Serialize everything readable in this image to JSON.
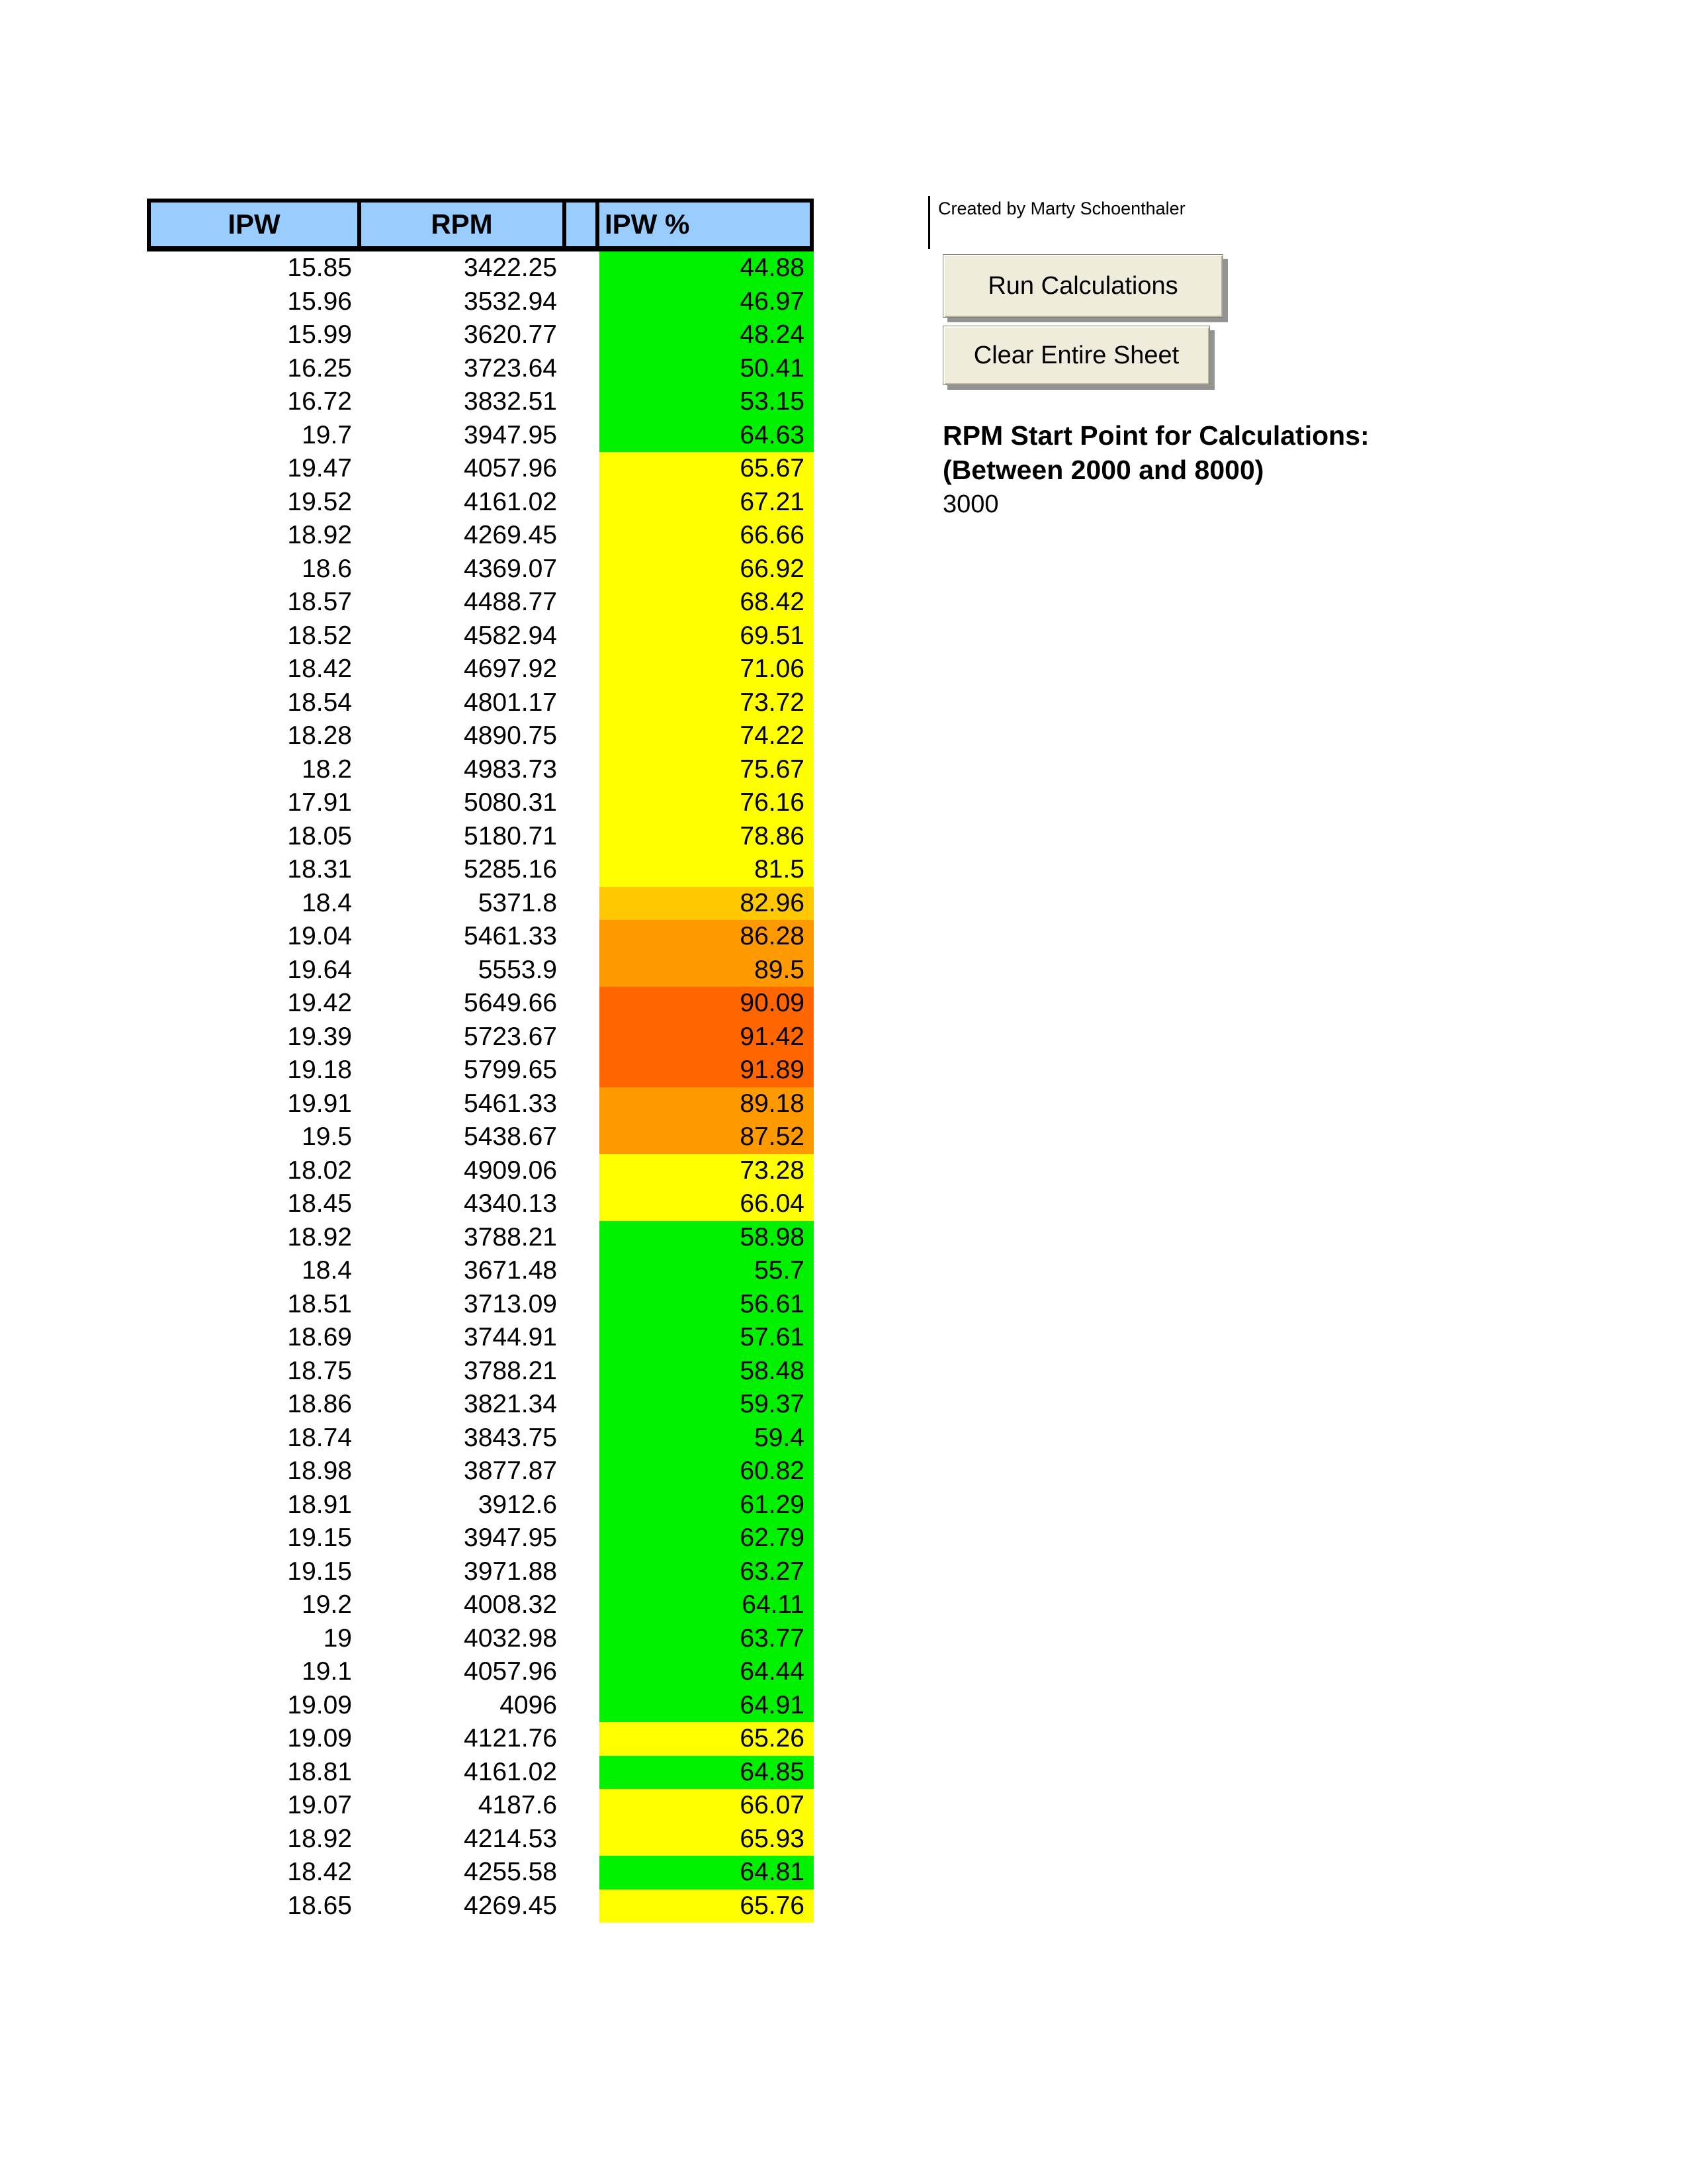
{
  "table": {
    "headers": {
      "ipw": "IPW",
      "rpm": "RPM",
      "ipw_pct": "IPW %"
    },
    "header_bg": "#99CCFF",
    "rows": [
      {
        "ipw": "15.85",
        "rpm": "3422.25",
        "pct": "44.88",
        "color": "green"
      },
      {
        "ipw": "15.96",
        "rpm": "3532.94",
        "pct": "46.97",
        "color": "green"
      },
      {
        "ipw": "15.99",
        "rpm": "3620.77",
        "pct": "48.24",
        "color": "green"
      },
      {
        "ipw": "16.25",
        "rpm": "3723.64",
        "pct": "50.41",
        "color": "green"
      },
      {
        "ipw": "16.72",
        "rpm": "3832.51",
        "pct": "53.15",
        "color": "green"
      },
      {
        "ipw": "19.7",
        "rpm": "3947.95",
        "pct": "64.63",
        "color": "green"
      },
      {
        "ipw": "19.47",
        "rpm": "4057.96",
        "pct": "65.67",
        "color": "yellow"
      },
      {
        "ipw": "19.52",
        "rpm": "4161.02",
        "pct": "67.21",
        "color": "yellow"
      },
      {
        "ipw": "18.92",
        "rpm": "4269.45",
        "pct": "66.66",
        "color": "yellow"
      },
      {
        "ipw": "18.6",
        "rpm": "4369.07",
        "pct": "66.92",
        "color": "yellow"
      },
      {
        "ipw": "18.57",
        "rpm": "4488.77",
        "pct": "68.42",
        "color": "yellow"
      },
      {
        "ipw": "18.52",
        "rpm": "4582.94",
        "pct": "69.51",
        "color": "yellow"
      },
      {
        "ipw": "18.42",
        "rpm": "4697.92",
        "pct": "71.06",
        "color": "yellow"
      },
      {
        "ipw": "18.54",
        "rpm": "4801.17",
        "pct": "73.72",
        "color": "yellow"
      },
      {
        "ipw": "18.28",
        "rpm": "4890.75",
        "pct": "74.22",
        "color": "yellow"
      },
      {
        "ipw": "18.2",
        "rpm": "4983.73",
        "pct": "75.67",
        "color": "yellow"
      },
      {
        "ipw": "17.91",
        "rpm": "5080.31",
        "pct": "76.16",
        "color": "yellow"
      },
      {
        "ipw": "18.05",
        "rpm": "5180.71",
        "pct": "78.86",
        "color": "yellow"
      },
      {
        "ipw": "18.31",
        "rpm": "5285.16",
        "pct": "81.5",
        "color": "yellow"
      },
      {
        "ipw": "18.4",
        "rpm": "5371.8",
        "pct": "82.96",
        "color": "gold"
      },
      {
        "ipw": "19.04",
        "rpm": "5461.33",
        "pct": "86.28",
        "color": "orange"
      },
      {
        "ipw": "19.64",
        "rpm": "5553.9",
        "pct": "89.5",
        "color": "orange"
      },
      {
        "ipw": "19.42",
        "rpm": "5649.66",
        "pct": "90.09",
        "color": "darkorange"
      },
      {
        "ipw": "19.39",
        "rpm": "5723.67",
        "pct": "91.42",
        "color": "darkorange"
      },
      {
        "ipw": "19.18",
        "rpm": "5799.65",
        "pct": "91.89",
        "color": "darkorange"
      },
      {
        "ipw": "19.91",
        "rpm": "5461.33",
        "pct": "89.18",
        "color": "orange"
      },
      {
        "ipw": "19.5",
        "rpm": "5438.67",
        "pct": "87.52",
        "color": "orange"
      },
      {
        "ipw": "18.02",
        "rpm": "4909.06",
        "pct": "73.28",
        "color": "yellow"
      },
      {
        "ipw": "18.45",
        "rpm": "4340.13",
        "pct": "66.04",
        "color": "yellow"
      },
      {
        "ipw": "18.92",
        "rpm": "3788.21",
        "pct": "58.98",
        "color": "green"
      },
      {
        "ipw": "18.4",
        "rpm": "3671.48",
        "pct": "55.7",
        "color": "green"
      },
      {
        "ipw": "18.51",
        "rpm": "3713.09",
        "pct": "56.61",
        "color": "green"
      },
      {
        "ipw": "18.69",
        "rpm": "3744.91",
        "pct": "57.61",
        "color": "green"
      },
      {
        "ipw": "18.75",
        "rpm": "3788.21",
        "pct": "58.48",
        "color": "green"
      },
      {
        "ipw": "18.86",
        "rpm": "3821.34",
        "pct": "59.37",
        "color": "green"
      },
      {
        "ipw": "18.74",
        "rpm": "3843.75",
        "pct": "59.4",
        "color": "green"
      },
      {
        "ipw": "18.98",
        "rpm": "3877.87",
        "pct": "60.82",
        "color": "green"
      },
      {
        "ipw": "18.91",
        "rpm": "3912.6",
        "pct": "61.29",
        "color": "green"
      },
      {
        "ipw": "19.15",
        "rpm": "3947.95",
        "pct": "62.79",
        "color": "green"
      },
      {
        "ipw": "19.15",
        "rpm": "3971.88",
        "pct": "63.27",
        "color": "green"
      },
      {
        "ipw": "19.2",
        "rpm": "4008.32",
        "pct": "64.11",
        "color": "green"
      },
      {
        "ipw": "19",
        "rpm": "4032.98",
        "pct": "63.77",
        "color": "green"
      },
      {
        "ipw": "19.1",
        "rpm": "4057.96",
        "pct": "64.44",
        "color": "green"
      },
      {
        "ipw": "19.09",
        "rpm": "4096",
        "pct": "64.91",
        "color": "green"
      },
      {
        "ipw": "19.09",
        "rpm": "4121.76",
        "pct": "65.26",
        "color": "yellow"
      },
      {
        "ipw": "18.81",
        "rpm": "4161.02",
        "pct": "64.85",
        "color": "green"
      },
      {
        "ipw": "19.07",
        "rpm": "4187.6",
        "pct": "66.07",
        "color": "yellow"
      },
      {
        "ipw": "18.92",
        "rpm": "4214.53",
        "pct": "65.93",
        "color": "yellow"
      },
      {
        "ipw": "18.42",
        "rpm": "4255.58",
        "pct": "64.81",
        "color": "green"
      },
      {
        "ipw": "18.65",
        "rpm": "4269.45",
        "pct": "65.76",
        "color": "yellow"
      }
    ]
  },
  "colors": {
    "green": "#00F000",
    "yellow": "#FFFF00",
    "gold": "#FFC800",
    "orange": "#FF9900",
    "darkorange": "#FF6600",
    "header_blue": "#99CCFF"
  },
  "side": {
    "credit": "Created by Marty Schoenthaler",
    "run_button": "Run Calculations",
    "clear_button": "Clear Entire Sheet",
    "rpm_label_line1": "RPM Start Point for Calculations:",
    "rpm_label_line2": "(Between 2000 and 8000)",
    "rpm_value": "3000"
  }
}
